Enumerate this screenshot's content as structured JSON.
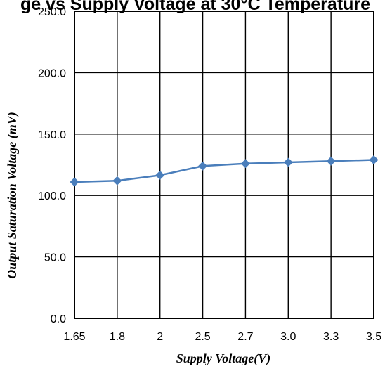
{
  "chart_data": {
    "type": "line",
    "title": "ge vs Supply Voltage at 30°C Temperature",
    "xlabel": "Supply Voltage(V)",
    "ylabel": "Output Saturation Voltage (mV)",
    "categories": [
      "1.65",
      "1.8",
      "2",
      "2.5",
      "2.7",
      "3.0",
      "3.3",
      "3.5"
    ],
    "series": [
      {
        "values": [
          111.0,
          112.0,
          116.5,
          124.0,
          126.0,
          127.0,
          128.0,
          129.0
        ]
      }
    ],
    "ylim": [
      0,
      250
    ],
    "yticks": [
      "0.0",
      "50.0",
      "100.0",
      "150.0",
      "200.0",
      "250.0"
    ],
    "grid": true,
    "line_color": "#4a7ebb",
    "marker_color": "#4a7ebb",
    "marker": "diamond"
  }
}
